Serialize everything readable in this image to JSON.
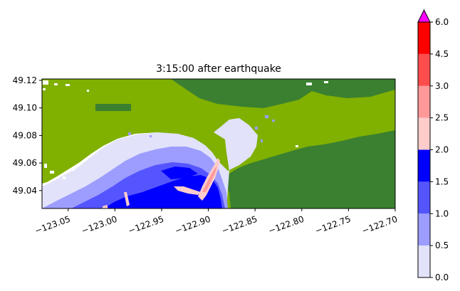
{
  "title": "3:15:00 after earthquake",
  "map": {
    "x_ticks": [
      "−123.05",
      "−123.00",
      "−122.95",
      "−122.90",
      "−122.85",
      "−122.80",
      "−122.75",
      "−122.70"
    ],
    "x_tick_values": [
      -123.05,
      -123.0,
      -122.95,
      -122.9,
      -122.85,
      -122.8,
      -122.75,
      -122.7
    ],
    "y_ticks": [
      "49.12",
      "49.10",
      "49.08",
      "49.06",
      "49.04"
    ],
    "y_tick_values": [
      49.12,
      49.1,
      49.08,
      49.06,
      49.04
    ],
    "xlim": [
      -123.078,
      -122.7
    ],
    "ylim": [
      49.027,
      49.121
    ],
    "land_colors": {
      "lowland": "#80b000",
      "upland": "#3a8030"
    }
  },
  "colorbar": {
    "ticks": [
      "0.0",
      "0.5",
      "1.0",
      "1.5",
      "2.0",
      "2.5",
      "3.0",
      "4.5",
      "6.0"
    ],
    "extend": "max",
    "extend_color": "#ff00ff",
    "levels": [
      {
        "from": 0.0,
        "to": 0.5,
        "color": "#e2e2fa"
      },
      {
        "from": 0.5,
        "to": 1.0,
        "color": "#9d9dff"
      },
      {
        "from": 1.0,
        "to": 1.5,
        "color": "#5555ff"
      },
      {
        "from": 1.5,
        "to": 2.0,
        "color": "#0000ff"
      },
      {
        "from": 2.0,
        "to": 2.5,
        "color": "#ffcccc"
      },
      {
        "from": 2.5,
        "to": 3.0,
        "color": "#ff9999"
      },
      {
        "from": 3.0,
        "to": 4.5,
        "color": "#ff4d4d"
      },
      {
        "from": 4.5,
        "to": 6.0,
        "color": "#ff0000"
      }
    ]
  }
}
